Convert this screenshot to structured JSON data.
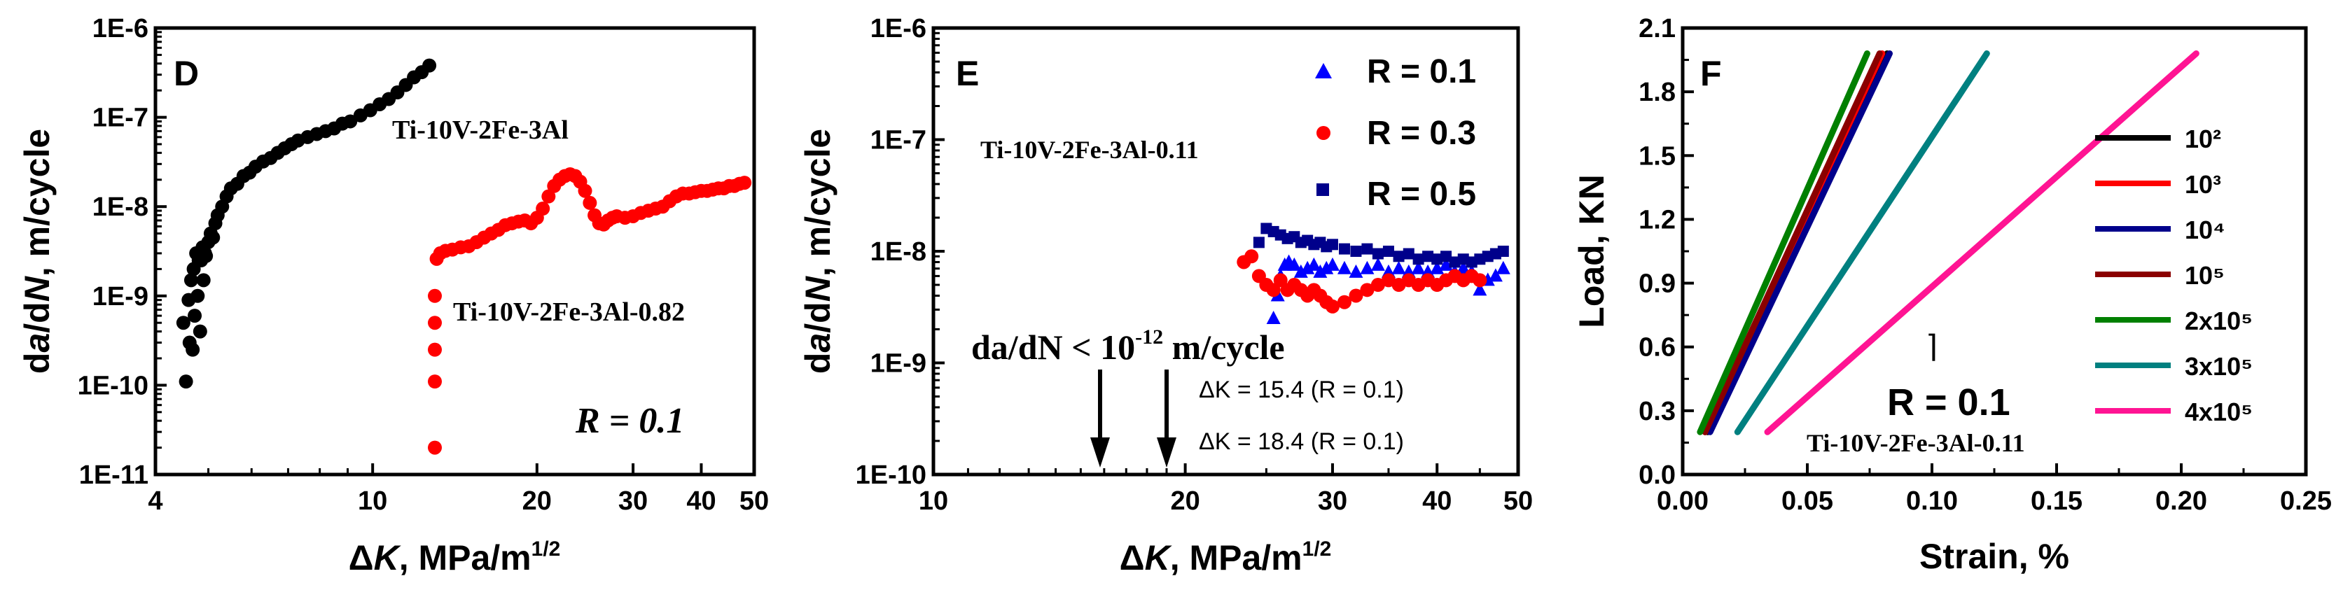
{
  "panels": [
    {
      "panel_label": "D",
      "x_label": {
        "prefix": "Δ",
        "italic": "K",
        "suffix": ", MPa/m",
        "sup": "1/2"
      },
      "y_label": {
        "prefix": "d",
        "italic1": "a",
        "mid": "/d",
        "italic2": "N",
        "suffix": ", m/cycle"
      },
      "x_ticks": [
        "4",
        "10",
        "20",
        "30",
        "40",
        "50"
      ],
      "y_ticks": [
        "1E-11",
        "1E-10",
        "1E-9",
        "1E-8",
        "1E-7",
        "1E-6"
      ],
      "annotations": [
        {
          "text": "Ti-10V-2Fe-3Al"
        },
        {
          "text": "Ti-10V-2Fe-3Al-0.82"
        },
        {
          "text": "R = 0.1"
        }
      ]
    },
    {
      "panel_label": "E",
      "x_label": {
        "prefix": "Δ",
        "italic": "K",
        "suffix": ", MPa/m",
        "sup": "1/2"
      },
      "y_label": {
        "prefix": "d",
        "italic1": "a",
        "mid": "/d",
        "italic2": "N",
        "suffix": ", m/cycle"
      },
      "x_ticks": [
        "10",
        "20",
        "30",
        "40",
        "50"
      ],
      "y_ticks": [
        "1E-10",
        "1E-9",
        "1E-8",
        "1E-7",
        "1E-6"
      ],
      "annotations": [
        {
          "text": "Ti-10V-2Fe-3Al-0.11"
        },
        {
          "text": "da/dN < 10",
          "sup": "-12",
          "tail": " m/cycle"
        },
        {
          "text": "ΔK = 15.4 (R = 0.1)"
        },
        {
          "text": "ΔK = 18.4 (R = 0.1)"
        }
      ],
      "legend": [
        "R = 0.1",
        "R = 0.3",
        "R = 0.5"
      ]
    },
    {
      "panel_label": "F",
      "x_label": "Strain, %",
      "y_label": "Load, KN",
      "x_ticks": [
        "0.00",
        "0.05",
        "0.10",
        "0.15",
        "0.20",
        "0.25"
      ],
      "y_ticks": [
        "0.0",
        "0.3",
        "0.6",
        "0.9",
        "1.2",
        "1.5",
        "1.8",
        "2.1"
      ],
      "annotations": [
        {
          "text": "R = 0.1"
        },
        {
          "text": "Ti-10V-2Fe-3Al-0.11"
        }
      ],
      "legend": [
        "10²",
        "10³",
        "10⁴",
        "10⁵",
        "2x10⁵",
        "3x10⁵",
        "4x10⁵"
      ]
    }
  ],
  "chart_data": [
    {
      "type": "scatter",
      "xscale": "log",
      "yscale": "log",
      "xlim": [
        4,
        50
      ],
      "ylim": [
        1e-11,
        1e-06
      ],
      "series": [
        {
          "name": "Ti-10V-2Fe-3Al",
          "color": "#000000",
          "marker": "circle",
          "x": [
            4.5,
            4.55,
            4.6,
            4.62,
            4.65,
            4.68,
            4.7,
            4.72,
            4.75,
            4.78,
            4.8,
            4.83,
            4.85,
            4.88,
            4.9,
            4.93,
            4.95,
            5.0,
            5.05,
            5.1,
            5.15,
            5.2,
            5.3,
            5.4,
            5.5,
            5.65,
            5.8,
            5.95,
            6.1,
            6.3,
            6.5,
            6.7,
            6.9,
            7.1,
            7.3,
            7.6,
            7.9,
            8.2,
            8.5,
            8.8,
            9.1,
            9.5,
            9.9,
            10.3,
            10.7,
            11.1,
            11.5,
            11.9,
            12.3,
            12.7
          ],
          "y": [
            5e-10,
            1.1e-10,
            9e-10,
            3e-10,
            1.5e-09,
            2.5e-10,
            2e-09,
            6e-10,
            3e-09,
            1e-09,
            2.5e-09,
            4e-10,
            2.5e-09,
            3.5e-09,
            1.5e-09,
            3e-09,
            2.8e-09,
            4e-09,
            5e-09,
            4.5e-09,
            6.5e-09,
            8e-09,
            1e-08,
            1.3e-08,
            1.6e-08,
            1.8e-08,
            2.2e-08,
            2.4e-08,
            2.8e-08,
            3.2e-08,
            3.5e-08,
            4e-08,
            4.5e-08,
            5e-08,
            5.5e-08,
            6e-08,
            6.5e-08,
            7e-08,
            7.5e-08,
            8.5e-08,
            9e-08,
            1.05e-07,
            1.2e-07,
            1.4e-07,
            1.6e-07,
            1.9e-07,
            2.3e-07,
            2.8e-07,
            3.2e-07,
            3.8e-07
          ]
        },
        {
          "name": "Ti-10V-2Fe-3Al-0.82",
          "color": "#ff0000",
          "marker": "circle",
          "x": [
            13.0,
            13.0,
            13.0,
            13.0,
            13.0,
            13.1,
            13.3,
            13.6,
            14.0,
            14.5,
            15.0,
            15.5,
            16.0,
            16.5,
            17.0,
            17.5,
            18.0,
            18.5,
            19.0,
            19.5,
            20.0,
            20.5,
            21.0,
            21.5,
            22.0,
            22.5,
            23.0,
            23.5,
            24.0,
            24.5,
            25.0,
            25.5,
            26.0,
            26.5,
            27.0,
            27.5,
            28.0,
            29.0,
            30.0,
            31.0,
            32.0,
            33.0,
            34.0,
            35.0,
            36.0,
            37.0,
            38.0,
            39.0,
            40.0,
            41.0,
            42.0,
            43.0,
            44.0,
            45.0,
            46.0,
            47.0,
            48.0
          ],
          "y": [
            2e-11,
            1.1e-10,
            2.5e-10,
            5e-10,
            1e-09,
            2.6e-09,
            3e-09,
            3.2e-09,
            3.3e-09,
            3.5e-09,
            3.6e-09,
            4e-09,
            4.5e-09,
            5e-09,
            5.5e-09,
            6.2e-09,
            6.5e-09,
            6.8e-09,
            7e-09,
            6.5e-09,
            7.5e-09,
            9.5e-09,
            1.3e-08,
            1.7e-08,
            2e-08,
            2.2e-08,
            2.3e-08,
            2.2e-08,
            1.9e-08,
            1.5e-08,
            1.1e-08,
            8e-09,
            6.5e-09,
            6.3e-09,
            7e-09,
            7.5e-09,
            7.8e-09,
            7.5e-09,
            7.8e-09,
            8.5e-09,
            9e-09,
            9.5e-09,
            1e-08,
            1.15e-08,
            1.3e-08,
            1.4e-08,
            1.4e-08,
            1.45e-08,
            1.5e-08,
            1.5e-08,
            1.55e-08,
            1.6e-08,
            1.6e-08,
            1.7e-08,
            1.7e-08,
            1.8e-08,
            1.85e-08
          ]
        }
      ]
    },
    {
      "type": "scatter",
      "xscale": "log",
      "yscale": "log",
      "xlim": [
        10,
        50
      ],
      "ylim": [
        1e-10,
        1e-06
      ],
      "series": [
        {
          "name": "R = 0.1",
          "color": "#0000ff",
          "marker": "triangle",
          "x": [
            25.5,
            25.8,
            26.0,
            26.3,
            26.6,
            27.0,
            27.5,
            28.0,
            28.5,
            29.0,
            29.5,
            30.0,
            31.0,
            32.0,
            33.0,
            34.0,
            35.0,
            36.0,
            37.0,
            38.0,
            39.0,
            40.0,
            41.0,
            42.0,
            43.0,
            44.0,
            45.0,
            46.0,
            47.0,
            48.0
          ],
          "y": [
            2.5e-09,
            4e-09,
            6e-09,
            7.5e-09,
            8e-09,
            7.5e-09,
            6.5e-09,
            7e-09,
            7.5e-09,
            6.5e-09,
            7e-09,
            7.5e-09,
            7e-09,
            6.5e-09,
            7e-09,
            7.5e-09,
            6.5e-09,
            7e-09,
            6.5e-09,
            7e-09,
            6.5e-09,
            7e-09,
            7.5e-09,
            6.5e-09,
            7e-09,
            6.5e-09,
            4.5e-09,
            5.5e-09,
            6e-09,
            7e-09
          ]
        },
        {
          "name": "R = 0.3",
          "color": "#ff0000",
          "marker": "circle",
          "x": [
            23.5,
            24.0,
            24.5,
            25.0,
            25.5,
            26.0,
            26.5,
            27.0,
            27.5,
            28.0,
            28.5,
            29.0,
            29.5,
            30.0,
            31.0,
            32.0,
            33.0,
            34.0,
            35.0,
            36.0,
            37.0,
            38.0,
            39.0,
            40.0,
            41.0,
            42.0,
            43.0,
            44.0,
            45.0
          ],
          "y": [
            8e-09,
            9e-09,
            6e-09,
            5e-09,
            4.5e-09,
            5.5e-09,
            4.5e-09,
            5e-09,
            4.5e-09,
            4e-09,
            4.5e-09,
            4e-09,
            3.5e-09,
            3.2e-09,
            3.5e-09,
            4e-09,
            4.5e-09,
            5e-09,
            5.5e-09,
            5e-09,
            5.5e-09,
            5e-09,
            5.5e-09,
            5e-09,
            5.5e-09,
            6e-09,
            5.5e-09,
            6e-09,
            5.5e-09
          ]
        },
        {
          "name": "R = 0.5",
          "color": "#00008b",
          "marker": "square",
          "x": [
            24.5,
            25.0,
            25.5,
            26.0,
            26.5,
            27.0,
            27.5,
            28.0,
            28.5,
            29.0,
            29.5,
            30.0,
            31.0,
            32.0,
            33.0,
            34.0,
            35.0,
            36.0,
            37.0,
            38.0,
            39.0,
            40.0,
            41.0,
            42.0,
            43.0,
            44.0,
            45.0,
            46.0,
            47.0,
            48.0
          ],
          "y": [
            1.2e-08,
            1.6e-08,
            1.5e-08,
            1.4e-08,
            1.3e-08,
            1.35e-08,
            1.2e-08,
            1.25e-08,
            1.15e-08,
            1.2e-08,
            1.1e-08,
            1.15e-08,
            1.05e-08,
            1e-08,
            1.05e-08,
            9.5e-09,
            1e-08,
            9e-09,
            9.5e-09,
            8.5e-09,
            9e-09,
            8.5e-09,
            9e-09,
            8e-09,
            8.5e-09,
            8e-09,
            8.5e-09,
            9e-09,
            9.5e-09,
            1e-08
          ]
        }
      ]
    },
    {
      "type": "line",
      "xlim": [
        0,
        0.25
      ],
      "ylim": [
        0,
        2.1
      ],
      "series": [
        {
          "name": "10²",
          "color": "#000000",
          "x": [
            0.01,
            0.082
          ],
          "y": [
            0.2,
            1.98
          ]
        },
        {
          "name": "10³",
          "color": "#ff0000",
          "x": [
            0.009,
            0.08
          ],
          "y": [
            0.2,
            1.98
          ]
        },
        {
          "name": "10⁴",
          "color": "#00008b",
          "x": [
            0.011,
            0.083
          ],
          "y": [
            0.2,
            1.98
          ]
        },
        {
          "name": "10⁵",
          "color": "#8b0000",
          "x": [
            0.009,
            0.079
          ],
          "y": [
            0.2,
            1.98
          ]
        },
        {
          "name": "2x10⁵",
          "color": "#008000",
          "x": [
            0.007,
            0.074
          ],
          "y": [
            0.2,
            1.98
          ]
        },
        {
          "name": "3x10⁵",
          "color": "#008080",
          "x": [
            0.022,
            0.122
          ],
          "y": [
            0.2,
            1.98
          ]
        },
        {
          "name": "4x10⁵",
          "color": "#ff1493",
          "x": [
            0.034,
            0.206
          ],
          "y": [
            0.2,
            1.98
          ]
        }
      ]
    }
  ]
}
